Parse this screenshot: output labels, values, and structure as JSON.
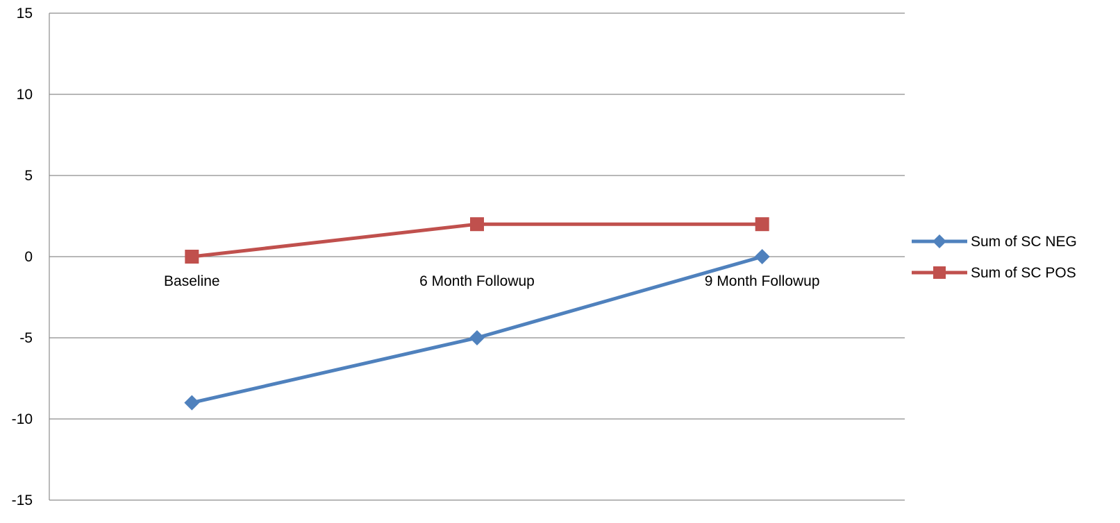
{
  "chart_data": {
    "type": "line",
    "title": "",
    "xlabel": "",
    "ylabel": "",
    "categories": [
      "Baseline",
      "6 Month Followup",
      "9 Month Followup"
    ],
    "ylim": [
      -15,
      15
    ],
    "yticks": [
      -15,
      -10,
      -5,
      0,
      5,
      10,
      15
    ],
    "grid": true,
    "legend_position": "right",
    "series": [
      {
        "name": "Sum of SC NEG",
        "values": [
          -9,
          -5,
          0
        ],
        "color": "#4f81bd",
        "marker": "diamond"
      },
      {
        "name": "Sum of SC POS",
        "values": [
          0,
          2,
          2
        ],
        "color": "#c0504d",
        "marker": "square"
      }
    ]
  }
}
